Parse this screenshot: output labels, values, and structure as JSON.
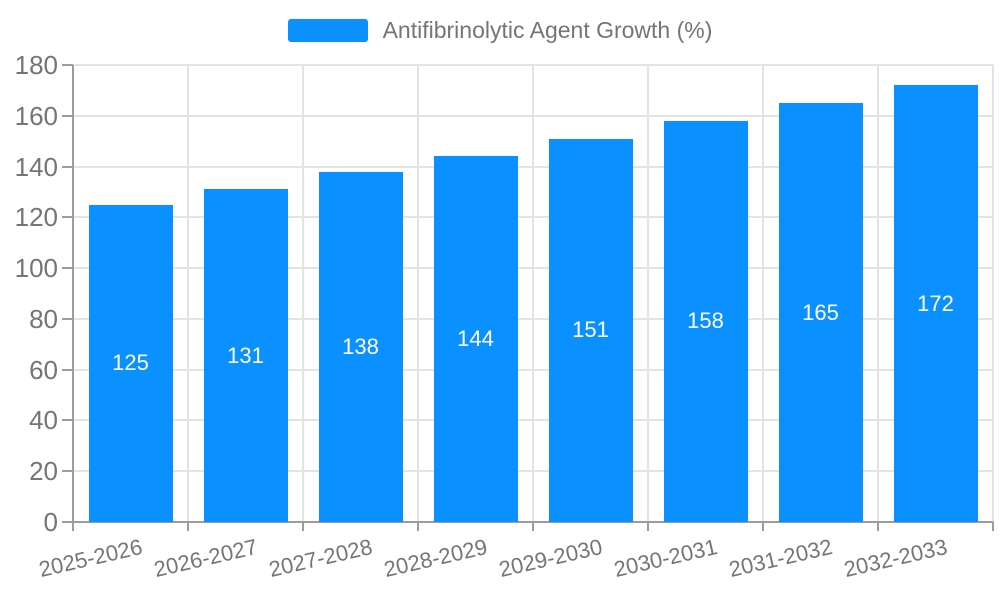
{
  "chart_data": {
    "type": "bar",
    "title": "",
    "legend": "Antifibrinolytic Agent Growth (%)",
    "categories": [
      "2025-2026",
      "2026-2027",
      "2027-2028",
      "2028-2029",
      "2029-2030",
      "2030-2031",
      "2031-2032",
      "2032-2033"
    ],
    "values": [
      125,
      131,
      138,
      144,
      151,
      158,
      165,
      172
    ],
    "xlabel": "",
    "ylabel": "",
    "ylim": [
      0,
      180
    ],
    "ytick_step": 20,
    "grid": "on",
    "legend_position": "top-center",
    "bar_label_position": "center-inside",
    "colors": {
      "bar": "#0a90ff",
      "grid": "#e3e3e3",
      "axis": "#9c9c9c",
      "text": "#757575",
      "bar_label": "#ffffff",
      "background": "#ffffff"
    }
  }
}
